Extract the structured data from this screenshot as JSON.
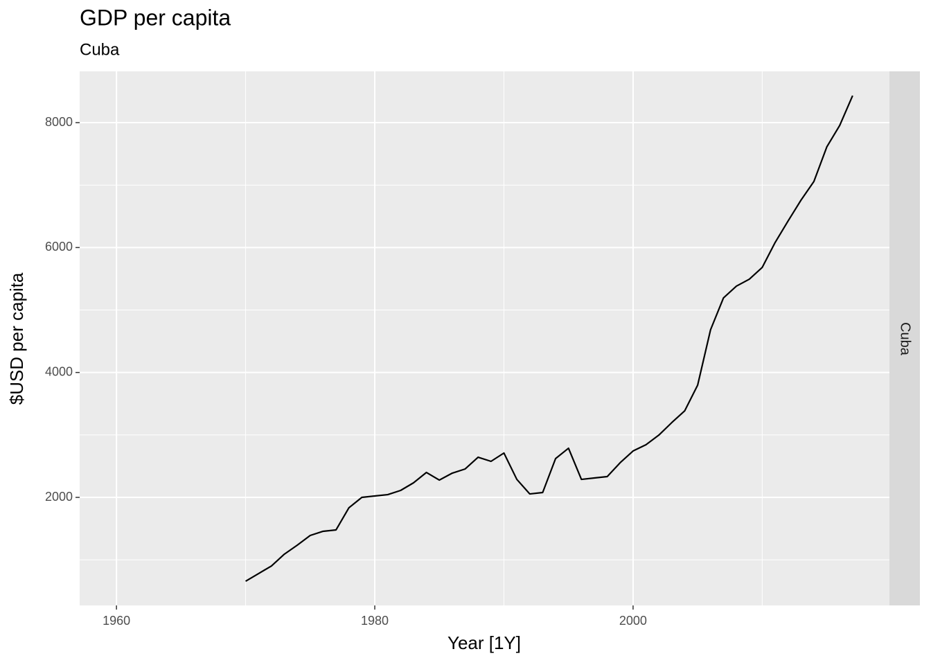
{
  "chart_data": {
    "type": "line",
    "title": "GDP per capita",
    "subtitle": "Cuba",
    "strip_label": "Cuba",
    "xlabel": "Year [1Y]",
    "ylabel": "$USD per capita",
    "x": [
      1970,
      1971,
      1972,
      1973,
      1974,
      1975,
      1976,
      1977,
      1978,
      1979,
      1980,
      1981,
      1982,
      1983,
      1984,
      1985,
      1986,
      1987,
      1988,
      1989,
      1990,
      1991,
      1992,
      1993,
      1994,
      1995,
      1996,
      1997,
      1998,
      1999,
      2000,
      2001,
      2002,
      2003,
      2004,
      2005,
      2006,
      2007,
      2008,
      2009,
      2010,
      2011,
      2012,
      2013,
      2014,
      2015,
      2016,
      2017
    ],
    "series": [
      {
        "name": "Cuba",
        "color": "#000000",
        "values": [
          658,
          780,
          902,
          1091,
          1235,
          1390,
          1457,
          1479,
          1834,
          2000,
          2022,
          2044,
          2111,
          2233,
          2399,
          2277,
          2388,
          2455,
          2643,
          2577,
          2710,
          2288,
          2055,
          2078,
          2621,
          2787,
          2288,
          2311,
          2333,
          2555,
          2743,
          2843,
          2998,
          3198,
          3386,
          3797,
          4684,
          5194,
          5382,
          5493,
          5682,
          6081,
          6425,
          6758,
          7057,
          7611,
          7955,
          8432
        ]
      }
    ],
    "xlim": [
      1957.15,
      2019.85
    ],
    "xticks": [
      1960,
      1980,
      2000
    ],
    "xminor": [
      1970,
      1990,
      2010
    ],
    "ylim": [
      270,
      8821
    ],
    "yticks": [
      2000,
      4000,
      6000,
      8000
    ],
    "yminor": [
      1000,
      3000,
      5000,
      7000
    ],
    "grid": true
  }
}
